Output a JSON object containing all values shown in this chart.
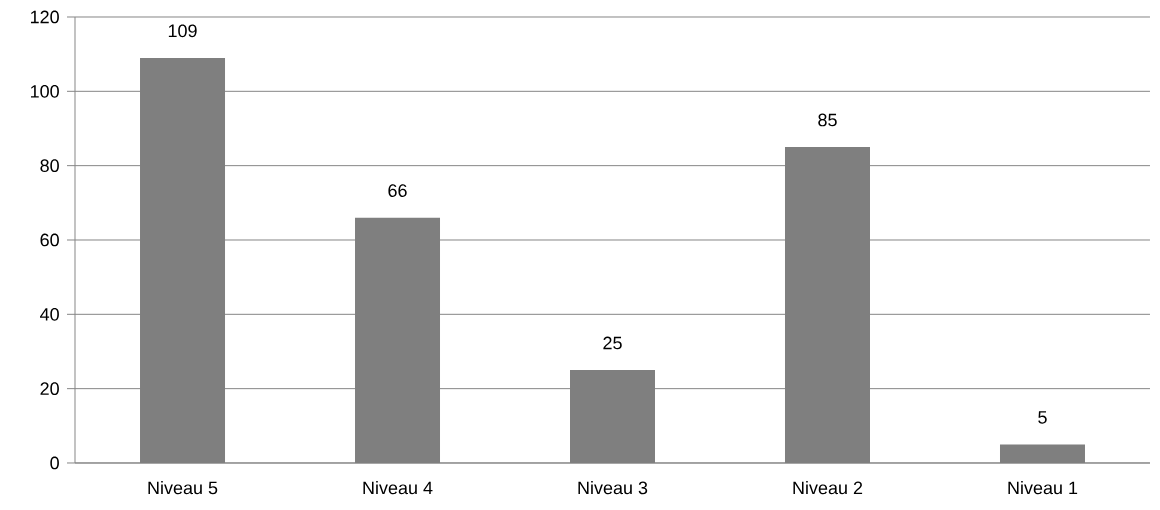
{
  "chart_data": {
    "type": "bar",
    "categories": [
      "Niveau 5",
      "Niveau 4",
      "Niveau 3",
      "Niveau 2",
      "Niveau 1"
    ],
    "values": [
      109,
      66,
      25,
      85,
      5
    ],
    "color": "#7f7f7f",
    "ylim": [
      0,
      120
    ],
    "yticks": [
      0,
      20,
      40,
      60,
      80,
      100,
      120
    ],
    "grid": "y",
    "data_labels": true
  }
}
